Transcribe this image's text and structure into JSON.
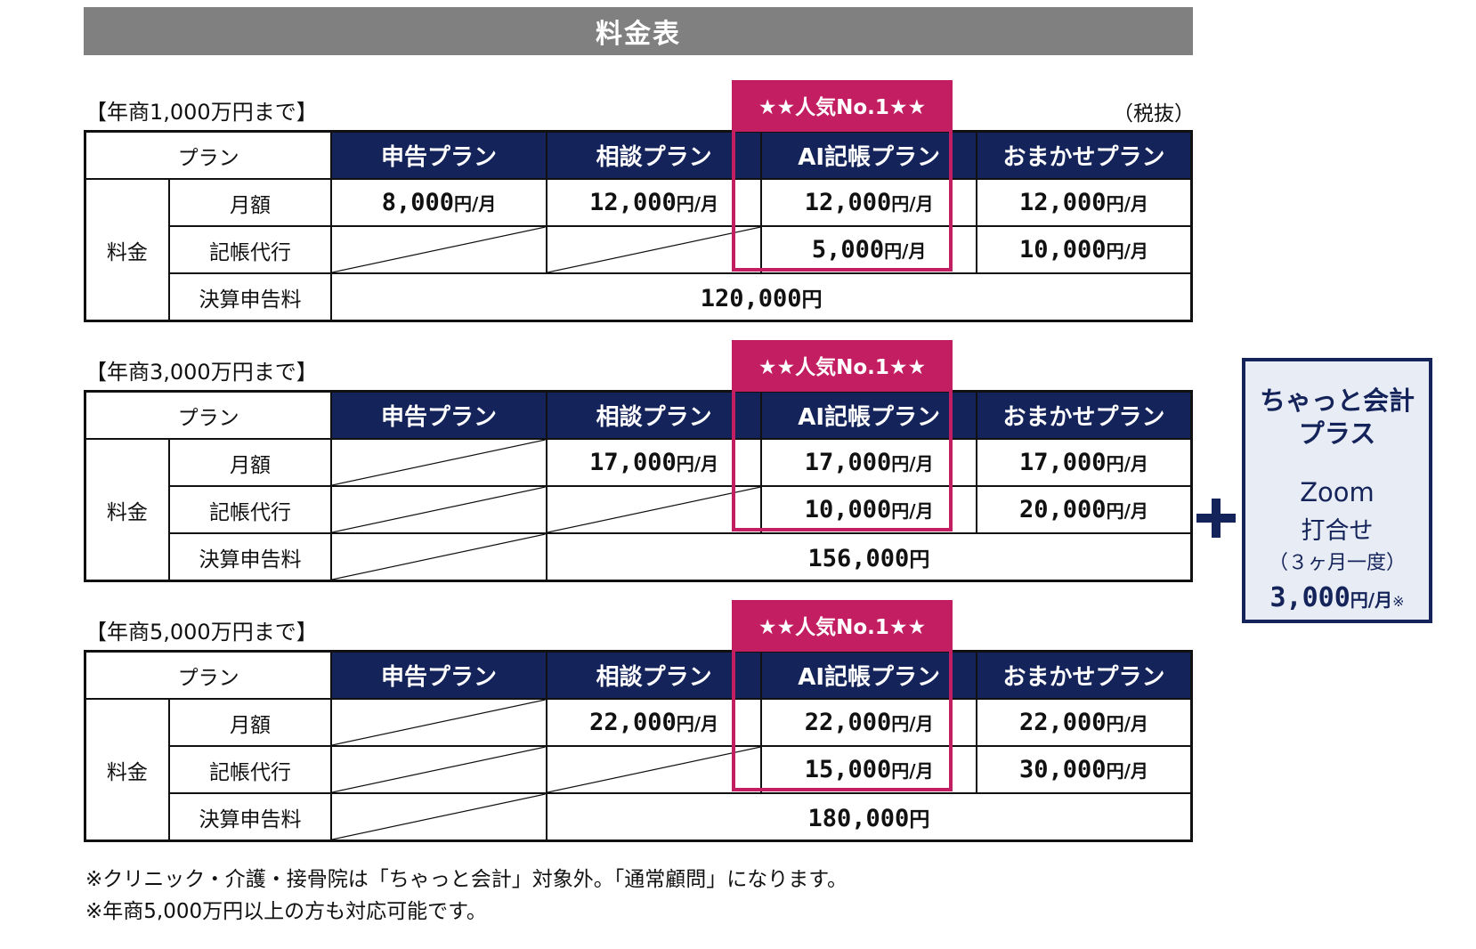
{
  "title": "料金表",
  "tax_note": "（税抜）",
  "popular_label": "★★人気No.1★★",
  "header": {
    "plan_label": "プラン",
    "plans": [
      "申告プラン",
      "相談プラン",
      "AI記帳プラン",
      "おまかせプラン"
    ]
  },
  "row_labels": {
    "fee": "料金",
    "monthly": "月額",
    "bookkeeping": "記帳代行",
    "settlement": "決算申告料"
  },
  "units": {
    "per_month": "円/月",
    "yen": "円"
  },
  "colors": {
    "navy": "#142359",
    "magenta": "#c41e63",
    "gray": "#808080"
  },
  "sections": [
    {
      "label": "【年商1,000万円まで】",
      "monthly": [
        "8,000",
        "12,000",
        "12,000",
        "12,000"
      ],
      "bookkeeping": [
        "",
        "",
        "5,000",
        "10,000"
      ],
      "settlement": "120,000"
    },
    {
      "label": "【年商3,000万円まで】",
      "monthly": [
        "",
        "17,000",
        "17,000",
        "17,000"
      ],
      "bookkeeping": [
        "",
        "",
        "10,000",
        "20,000"
      ],
      "settlement": "156,000"
    },
    {
      "label": "【年商5,000万円まで】",
      "monthly": [
        "",
        "22,000",
        "22,000",
        "22,000"
      ],
      "bookkeeping": [
        "",
        "",
        "15,000",
        "30,000"
      ],
      "settlement": "180,000"
    }
  ],
  "addon": {
    "title_line1": "ちゃっと会計",
    "title_line2": "プラス",
    "zoom": "Zoom",
    "meeting": "打合せ",
    "frequency": "（３ヶ月一度）",
    "price": "3,000",
    "unit": "円/月",
    "mark": "※"
  },
  "footnotes": [
    "※クリニック・介護・接骨院は「ちゃっと会計」対象外。「通常顧問」になります。",
    "※年商5,000万円以上の方も対応可能です。"
  ]
}
